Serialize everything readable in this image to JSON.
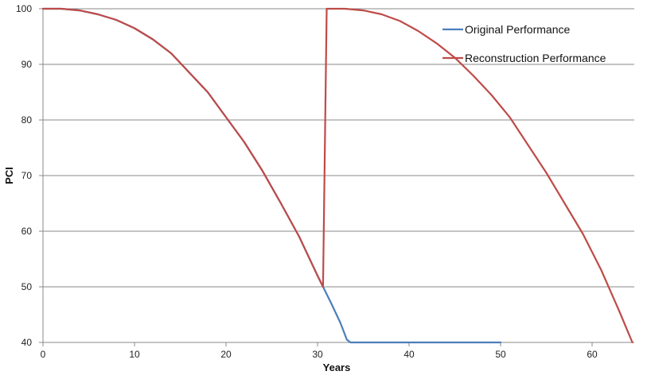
{
  "chart_data": {
    "type": "line",
    "title": "",
    "xlabel": "Years",
    "ylabel": "PCI",
    "xlim": [
      0,
      65
    ],
    "ylim": [
      40,
      100
    ],
    "xticks": [
      0,
      10,
      20,
      30,
      40,
      50,
      60
    ],
    "yticks": [
      40,
      50,
      60,
      70,
      80,
      90,
      100
    ],
    "grid": "horizontal",
    "legend": "top-right",
    "series": [
      {
        "name": "Original Performance",
        "color": "#4a7ebb",
        "x": [
          0,
          2,
          4,
          6,
          8,
          10,
          12,
          14,
          16,
          18,
          20,
          22,
          24,
          26,
          28,
          30,
          30.6,
          31.5,
          32.5,
          33.2,
          33.6,
          35,
          40,
          45,
          50
        ],
        "y": [
          100,
          100,
          99.7,
          99,
          98,
          96.5,
          94.5,
          92,
          88.5,
          85,
          80.5,
          76,
          70.8,
          65,
          59,
          52,
          50,
          47,
          43.5,
          40.5,
          40,
          40,
          40,
          40,
          40
        ]
      },
      {
        "name": "Reconstruction Performance",
        "color": "#be4b48",
        "x": [
          0,
          2,
          4,
          6,
          8,
          10,
          12,
          14,
          16,
          18,
          20,
          22,
          24,
          26,
          28,
          30,
          30.6,
          31,
          33,
          35,
          37,
          39,
          41,
          43,
          45,
          47,
          49,
          51,
          53,
          55,
          57,
          59,
          61,
          63,
          64.4
        ],
        "y": [
          100,
          100,
          99.7,
          99,
          98,
          96.5,
          94.5,
          92,
          88.5,
          85,
          80.5,
          76,
          70.8,
          65,
          59,
          52,
          50,
          100,
          100,
          99.7,
          99,
          97.8,
          96,
          93.8,
          91.2,
          88,
          84.5,
          80.5,
          75.5,
          70.5,
          65,
          59.5,
          53,
          45.5,
          40
        ]
      }
    ]
  }
}
